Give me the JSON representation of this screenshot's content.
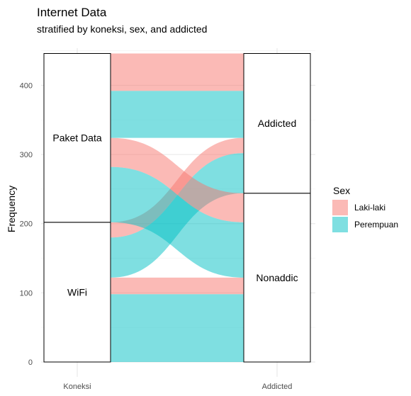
{
  "chart_data": {
    "type": "alluvial",
    "title": "Internet Data",
    "subtitle": "stratified by koneksi, sex, and addicted",
    "ylabel": "Frequency",
    "xlabel": "",
    "ylim": [
      0,
      446
    ],
    "y_ticks": [
      0,
      100,
      200,
      300,
      400
    ],
    "axes": [
      "Koneksi",
      "Addicted"
    ],
    "strata": {
      "Koneksi": [
        {
          "label": "WiFi",
          "value": 202
        },
        {
          "label": "Paket Data",
          "value": 244
        }
      ],
      "Addicted": [
        {
          "label": "Nonaddic",
          "value": 244
        },
        {
          "label": "Addicted",
          "value": 202
        }
      ]
    },
    "legend": {
      "title": "Sex",
      "position": "right",
      "entries": [
        {
          "label": "Laki-laki",
          "color": "#F8766D"
        },
        {
          "label": "Perempuan",
          "color": "#00BFC4"
        }
      ]
    },
    "flows": [
      {
        "from": "WiFi",
        "to": "Nonaddic",
        "sex": "Perempuan",
        "value": 98
      },
      {
        "from": "WiFi",
        "to": "Nonaddic",
        "sex": "Laki-laki",
        "value": 24
      },
      {
        "from": "WiFi",
        "to": "Addicted",
        "sex": "Perempuan",
        "value": 58
      },
      {
        "from": "WiFi",
        "to": "Addicted",
        "sex": "Laki-laki",
        "value": 22
      },
      {
        "from": "Paket Data",
        "to": "Nonaddic",
        "sex": "Perempuan",
        "value": 80
      },
      {
        "from": "Paket Data",
        "to": "Nonaddic",
        "sex": "Laki-laki",
        "value": 42
      },
      {
        "from": "Paket Data",
        "to": "Addicted",
        "sex": "Perempuan",
        "value": 68
      },
      {
        "from": "Paket Data",
        "to": "Addicted",
        "sex": "Laki-laki",
        "value": 54
      }
    ],
    "grid": true
  }
}
